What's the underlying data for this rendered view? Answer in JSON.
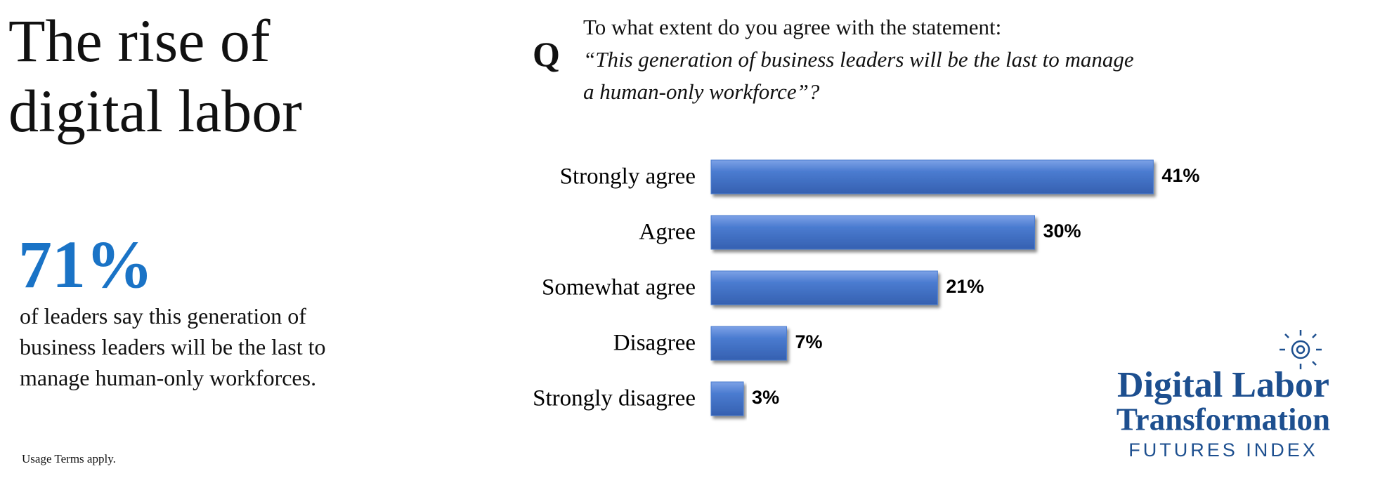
{
  "title": "The rise of digital labor",
  "stat": {
    "value": "71%",
    "text": "of leaders say this generation of business leaders will be the last to manage human-only workforces."
  },
  "usage": "Usage Terms apply.",
  "question": {
    "marker": "Q",
    "text": "To what extent do you agree with the statement:",
    "quote": "“This generation of business leaders will be the last to manage a human-only workforce”?"
  },
  "chart_data": {
    "type": "hbar",
    "categories": [
      "Strongly agree",
      "Agree",
      "Somewhat agree",
      "Disagree",
      "Strongly disagree"
    ],
    "values": [
      41,
      30,
      21,
      7,
      3
    ],
    "value_labels": [
      "41%",
      "30%",
      "21%",
      "7%",
      "3%"
    ],
    "color": "#4a7bd0"
  },
  "logo": {
    "line1": "Digital Labor",
    "line2": "Transformation",
    "line3": "FUTURES INDEX"
  }
}
